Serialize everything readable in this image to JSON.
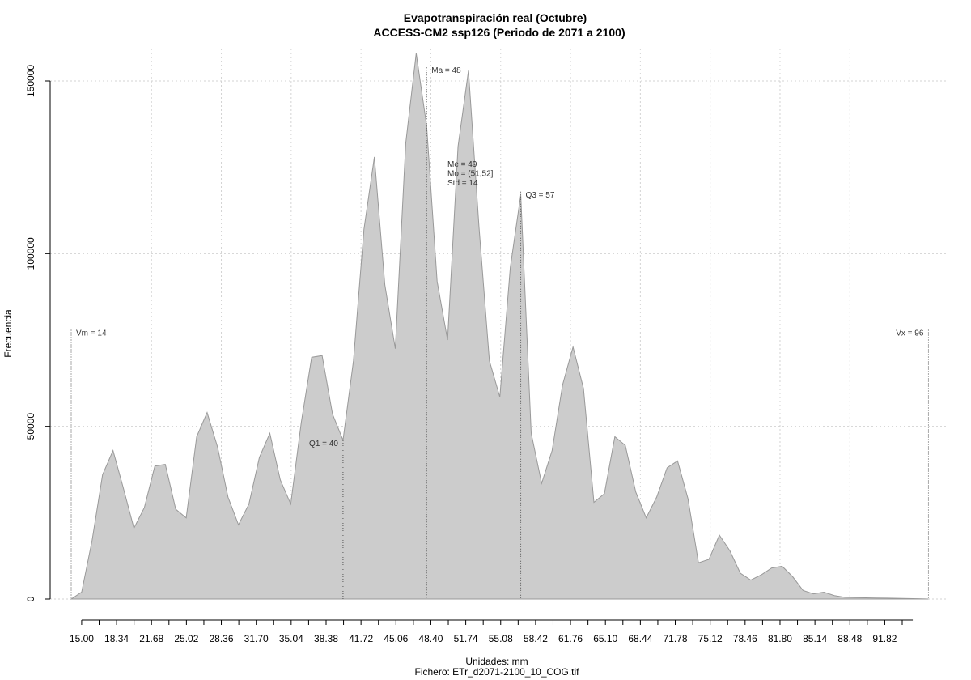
{
  "chart_data": {
    "type": "area",
    "title": "Evapotranspiración real (Octubre)",
    "subtitle": "ACCESS-CM2 ssp126 (Periodo de 2071 a 2100)",
    "xlabel": "Unidades: mm",
    "caption": "Fichero: ETr_d2071-2100_10_COG.tif",
    "ylabel": "Frecuencia",
    "xlim": [
      12.9,
      97.1
    ],
    "ylim": [
      0,
      150000
    ],
    "grid": true,
    "x_ticks": [
      "15.00",
      "18.34",
      "21.68",
      "25.02",
      "28.36",
      "31.70",
      "35.04",
      "38.38",
      "41.72",
      "45.06",
      "48.40",
      "51.74",
      "55.08",
      "58.42",
      "61.76",
      "65.10",
      "68.44",
      "71.78",
      "75.12",
      "78.46",
      "81.80",
      "85.14",
      "88.48",
      "91.82"
    ],
    "y_ticks": [
      0,
      50000,
      100000,
      150000
    ],
    "fill_color": "#cccccc",
    "line_color": "#999999",
    "x": [
      14,
      15,
      16,
      17,
      18,
      19,
      20,
      21,
      22,
      23,
      24,
      25,
      26,
      27,
      28,
      29,
      30,
      31,
      32,
      33,
      34,
      35,
      36,
      37,
      38,
      39,
      40,
      41,
      42,
      43,
      44,
      45,
      46,
      47,
      48,
      49,
      50,
      51,
      52,
      53,
      54,
      55,
      56,
      57,
      58,
      59,
      60,
      61,
      62,
      63,
      64,
      65,
      66,
      67,
      68,
      69,
      70,
      71,
      72,
      73,
      74,
      75,
      76,
      77,
      78,
      79,
      80,
      81,
      82,
      83,
      84,
      85,
      86,
      87,
      88,
      89,
      90,
      91,
      92,
      93,
      94,
      95,
      96
    ],
    "values": [
      0,
      2000,
      17000,
      36000,
      43000,
      32000,
      20500,
      26500,
      38500,
      39000,
      26000,
      23500,
      47000,
      54000,
      44000,
      29500,
      21500,
      27500,
      41000,
      48000,
      34500,
      27500,
      51000,
      70000,
      70500,
      53500,
      46000,
      69000,
      107000,
      128000,
      91000,
      72500,
      132000,
      158000,
      137000,
      92000,
      75000,
      131000,
      153000,
      108000,
      69000,
      58500,
      96000,
      117000,
      48000,
      33500,
      43000,
      62000,
      73000,
      61000,
      28000,
      30500,
      47000,
      44500,
      31000,
      23500,
      29500,
      38000,
      40000,
      29000,
      10500,
      11500,
      18500,
      14000,
      7500,
      5500,
      7000,
      9000,
      9500,
      6500,
      2500,
      1500,
      2000,
      1000,
      500,
      400,
      350,
      300,
      250,
      200,
      150,
      100,
      0
    ],
    "vlines": [
      {
        "x": 14,
        "label": "Vm = 14",
        "label_y": 77000,
        "anchor": "start"
      },
      {
        "x": 40,
        "label": "Q1 = 40",
        "label_y": 45000,
        "anchor": "end"
      },
      {
        "x": 48,
        "label": "Ma = 48",
        "label_y": 153000,
        "anchor": "start"
      },
      {
        "x": 57,
        "label": "Q3 = 57",
        "label_y": 117000,
        "anchor": "start"
      },
      {
        "x": 96,
        "label": "Vx = 96",
        "label_y": 77000,
        "anchor": "end"
      }
    ],
    "stats": [
      "Me = 49",
      "Mo = (51,52]",
      "Std = 14"
    ]
  }
}
